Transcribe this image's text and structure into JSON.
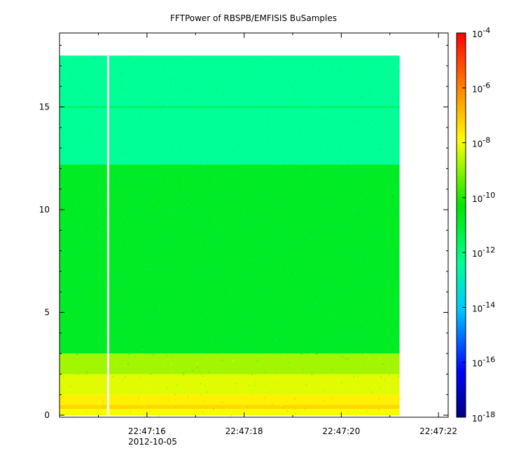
{
  "chart_data": {
    "type": "heatmap",
    "title": "FFTPower of RBSPB/EMFISIS  BuSamples",
    "xlabel": "",
    "ylabel": "",
    "x_axis": {
      "type": "time",
      "range": [
        "22:47:14.2",
        "22:47:22.2"
      ],
      "ticks": [
        "22:47:16",
        "22:47:18",
        "22:47:20",
        "22:47:22"
      ],
      "tick_values_sec": [
        16,
        18,
        20,
        22
      ],
      "date_label": "2012-10-05"
    },
    "y_axis": {
      "range": [
        -0.1,
        18.6
      ],
      "ticks": [
        "0",
        "5",
        "10",
        "15"
      ],
      "tick_values": [
        0,
        5,
        10,
        15
      ]
    },
    "data_extent": {
      "x_start_sec": 14.2,
      "x_end_sec": 21.2,
      "y_start": 0,
      "y_end": 17.5,
      "gap_at_sec": 15.2
    },
    "bands": [
      {
        "y_from": 0.0,
        "y_to": 0.3,
        "log_power": -8.0
      },
      {
        "y_from": 0.3,
        "y_to": 0.5,
        "log_power": -7.3
      },
      {
        "y_from": 0.5,
        "y_to": 1.0,
        "log_power": -7.7
      },
      {
        "y_from": 1.0,
        "y_to": 2.0,
        "log_power": -8.2
      },
      {
        "y_from": 2.0,
        "y_to": 3.0,
        "log_power": -8.8
      },
      {
        "y_from": 3.0,
        "y_to": 12.2,
        "log_power": -10.8
      },
      {
        "y_from": 12.2,
        "y_to": 17.5,
        "log_power": -12.4
      },
      {
        "y_from": 14.95,
        "y_to": 15.05,
        "log_power": -11.7
      }
    ],
    "colorbar": {
      "scale": "log",
      "range": [
        1e-18,
        0.0001
      ],
      "ticks": [
        {
          "exp": -4,
          "label": "10",
          "sup": "-4"
        },
        {
          "exp": -6,
          "label": "10",
          "sup": "-6"
        },
        {
          "exp": -8,
          "label": "10",
          "sup": "-8"
        },
        {
          "exp": -10,
          "label": "10",
          "sup": "-10"
        },
        {
          "exp": -12,
          "label": "10",
          "sup": "-12"
        },
        {
          "exp": -14,
          "label": "10",
          "sup": "-14"
        },
        {
          "exp": -16,
          "label": "10",
          "sup": "-16"
        },
        {
          "exp": -18,
          "label": "10",
          "sup": "-18"
        }
      ],
      "colors": [
        "#00007f",
        "#0000ff",
        "#00c8ff",
        "#00ff96",
        "#00e600",
        "#ffff00",
        "#ff8000",
        "#ff0000"
      ]
    }
  }
}
